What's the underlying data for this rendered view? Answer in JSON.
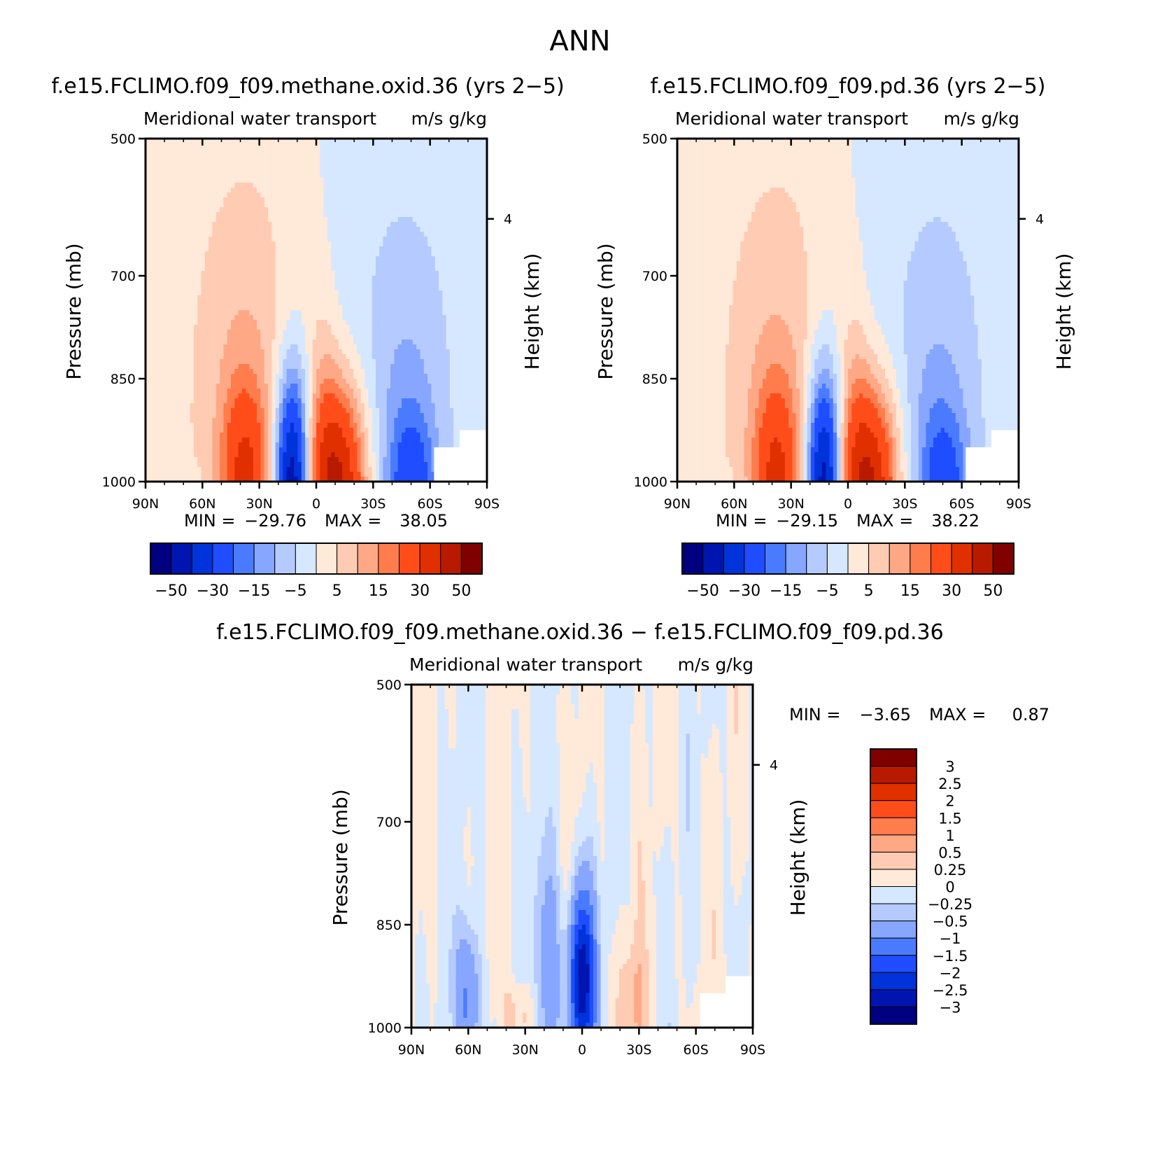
{
  "figure": {
    "title": "ANN"
  },
  "chart_data": [
    {
      "type": "heatmap",
      "title": "f.e15.FCLIMO.f09_f09.methane.oxid.36 (yrs 2−5)",
      "subtitle_left": "Meridional water transport",
      "subtitle_right": "m/s g/kg",
      "ylabel": "Pressure (mb)",
      "ylabel_right": "Height (km)",
      "x_ticks": [
        "90N",
        "60N",
        "30N",
        "0",
        "30S",
        "60S",
        "90S"
      ],
      "y_ticks": [
        "500",
        "700",
        "850",
        "1000"
      ],
      "y_right_ticks": [
        "4"
      ],
      "stats": {
        "min_label": "MIN =",
        "min": "−29.76",
        "max_label": "MAX =",
        "max": "38.05"
      },
      "colorbar": {
        "orientation": "horizontal",
        "labels": [
          "−50",
          "−30",
          "−15",
          "−5",
          "5",
          "15",
          "30",
          "50"
        ]
      }
    },
    {
      "type": "heatmap",
      "title": "f.e15.FCLIMO.f09_f09.pd.36 (yrs 2−5)",
      "subtitle_left": "Meridional water transport",
      "subtitle_right": "m/s g/kg",
      "ylabel": "Pressure (mb)",
      "ylabel_right": "Height (km)",
      "x_ticks": [
        "90N",
        "60N",
        "30N",
        "0",
        "30S",
        "60S",
        "90S"
      ],
      "y_ticks": [
        "500",
        "700",
        "850",
        "1000"
      ],
      "y_right_ticks": [
        "4"
      ],
      "stats": {
        "min_label": "MIN =",
        "min": "−29.15",
        "max_label": "MAX =",
        "max": "38.22"
      },
      "colorbar": {
        "orientation": "horizontal",
        "labels": [
          "−50",
          "−30",
          "−15",
          "−5",
          "5",
          "15",
          "30",
          "50"
        ]
      }
    },
    {
      "type": "heatmap",
      "title": "f.e15.FCLIMO.f09_f09.methane.oxid.36 − f.e15.FCLIMO.f09_f09.pd.36",
      "subtitle_left": "Meridional water transport",
      "subtitle_right": "m/s g/kg",
      "ylabel": "Pressure (mb)",
      "ylabel_right": "Height (km)",
      "x_ticks": [
        "90N",
        "60N",
        "30N",
        "0",
        "30S",
        "60S",
        "90S"
      ],
      "y_ticks": [
        "500",
        "700",
        "850",
        "1000"
      ],
      "y_right_ticks": [
        "4"
      ],
      "stats": {
        "min_label": "MIN =",
        "min": "−3.65",
        "max_label": "MAX =",
        "max": "0.87"
      },
      "colorbar": {
        "orientation": "vertical",
        "labels": [
          "3",
          "2.5",
          "2",
          "1.5",
          "1",
          "0.5",
          "0.25",
          "0",
          "−0.25",
          "−0.5",
          "−1",
          "−1.5",
          "−2",
          "−2.5",
          "−3"
        ]
      }
    }
  ],
  "palette": {
    "colors": [
      "#000080",
      "#0015b0",
      "#0033d9",
      "#1f4dff",
      "#4a7bff",
      "#86a6ff",
      "#b5cbff",
      "#d6e8ff",
      "#ffe9d9",
      "#ffcbb2",
      "#ffa886",
      "#ff7c4d",
      "#ff4d1a",
      "#e03000",
      "#b81a00",
      "#800000"
    ],
    "missing": "#ffffff"
  }
}
